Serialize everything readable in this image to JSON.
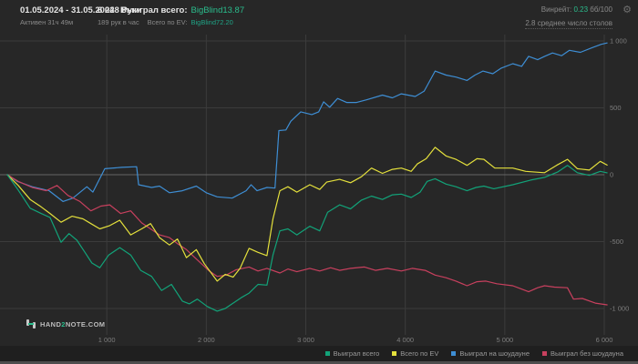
{
  "header": {
    "date_range": "01.05.2024 - 31.05.2024",
    "active_time": "Активен 31ч 49м",
    "hands_total": "6 028 Руки",
    "hands_per_hour": "189 рук в час",
    "won_label": "Выиграл всего:",
    "won_value": "BigBlind13.87",
    "ev_label": "Всего по EV:",
    "ev_value": "BigBlind72.20",
    "winrate_label": "Винрейт:",
    "winrate_value": "0.23",
    "winrate_unit": "бб/100",
    "avg_tables": "2.8 среднее число столов",
    "gear_icon": "⚙"
  },
  "footer": {
    "logo_pre": "HAND",
    "logo_num": "2",
    "logo_post": "NOTE.COM"
  },
  "legend": [
    {
      "label": "Выиграл всего",
      "color": "#12a379"
    },
    {
      "label": "Всего по EV",
      "color": "#e4e03c"
    },
    {
      "label": "Выиграл на шоудауне",
      "color": "#3e8ed4"
    },
    {
      "label": "Выиграл без шоудауна",
      "color": "#c8405e"
    }
  ],
  "colors": {
    "background": "#272727",
    "grid": "#3b3b3b",
    "zero_line": "#666666",
    "tick_text": "#7d7d7d",
    "accent_green": "#2abd8d"
  },
  "chart_data": {
    "type": "line",
    "title": "",
    "xlabel": "",
    "ylabel": "",
    "legend_position": "bottom-right",
    "grid": true,
    "x_axis": {
      "ticks": [
        1000,
        2000,
        3000,
        4000,
        5000,
        6000
      ],
      "tick_labels": [
        "1 000",
        "2 000",
        "3 000",
        "4 000",
        "5 000",
        "6 000"
      ],
      "min": 0,
      "max": 6028
    },
    "y_axis": {
      "ticks": [
        1000,
        500,
        0,
        -500,
        -1000
      ],
      "tick_labels": [
        "1 000",
        "500",
        "0",
        "-500",
        "-1 000"
      ],
      "min": -1100,
      "max": 1100
    },
    "series": [
      {
        "name": "Выиграл на шоудауне",
        "color": "#3e8ed4",
        "points": [
          [
            0,
            0
          ],
          [
            100,
            -50
          ],
          [
            250,
            -90
          ],
          [
            420,
            -120
          ],
          [
            560,
            -200
          ],
          [
            660,
            -175
          ],
          [
            800,
            -90
          ],
          [
            860,
            -130
          ],
          [
            980,
            45
          ],
          [
            1150,
            55
          ],
          [
            1300,
            60
          ],
          [
            1320,
            -75
          ],
          [
            1450,
            -95
          ],
          [
            1530,
            -85
          ],
          [
            1630,
            -135
          ],
          [
            1760,
            -120
          ],
          [
            1900,
            -85
          ],
          [
            2000,
            -135
          ],
          [
            2110,
            -165
          ],
          [
            2260,
            -175
          ],
          [
            2400,
            -120
          ],
          [
            2450,
            -75
          ],
          [
            2510,
            -120
          ],
          [
            2610,
            -95
          ],
          [
            2690,
            -100
          ],
          [
            2730,
            330
          ],
          [
            2800,
            335
          ],
          [
            2850,
            400
          ],
          [
            2950,
            470
          ],
          [
            3060,
            450
          ],
          [
            3130,
            470
          ],
          [
            3180,
            545
          ],
          [
            3240,
            505
          ],
          [
            3320,
            570
          ],
          [
            3410,
            540
          ],
          [
            3510,
            540
          ],
          [
            3610,
            560
          ],
          [
            3770,
            595
          ],
          [
            3870,
            575
          ],
          [
            3960,
            605
          ],
          [
            4100,
            585
          ],
          [
            4190,
            625
          ],
          [
            4300,
            775
          ],
          [
            4410,
            745
          ],
          [
            4510,
            730
          ],
          [
            4620,
            705
          ],
          [
            4700,
            745
          ],
          [
            4780,
            775
          ],
          [
            4880,
            755
          ],
          [
            4960,
            795
          ],
          [
            5080,
            830
          ],
          [
            5170,
            810
          ],
          [
            5240,
            885
          ],
          [
            5330,
            860
          ],
          [
            5400,
            885
          ],
          [
            5480,
            910
          ],
          [
            5570,
            890
          ],
          [
            5650,
            930
          ],
          [
            5760,
            915
          ],
          [
            5880,
            950
          ],
          [
            5970,
            975
          ],
          [
            6028,
            985
          ]
        ]
      },
      {
        "name": "Выиграл без шоудауна",
        "color": "#c8405e",
        "points": [
          [
            0,
            0
          ],
          [
            110,
            -50
          ],
          [
            250,
            -95
          ],
          [
            390,
            -120
          ],
          [
            500,
            -80
          ],
          [
            610,
            -155
          ],
          [
            730,
            -200
          ],
          [
            840,
            -270
          ],
          [
            940,
            -235
          ],
          [
            1030,
            -225
          ],
          [
            1140,
            -290
          ],
          [
            1240,
            -270
          ],
          [
            1350,
            -360
          ],
          [
            1450,
            -410
          ],
          [
            1530,
            -450
          ],
          [
            1630,
            -470
          ],
          [
            1710,
            -515
          ],
          [
            1800,
            -560
          ],
          [
            1900,
            -630
          ],
          [
            2030,
            -720
          ],
          [
            2110,
            -760
          ],
          [
            2200,
            -750
          ],
          [
            2300,
            -710
          ],
          [
            2430,
            -690
          ],
          [
            2520,
            -720
          ],
          [
            2610,
            -700
          ],
          [
            2740,
            -735
          ],
          [
            2820,
            -705
          ],
          [
            2910,
            -725
          ],
          [
            3040,
            -700
          ],
          [
            3140,
            -720
          ],
          [
            3250,
            -695
          ],
          [
            3340,
            -715
          ],
          [
            3450,
            -700
          ],
          [
            3590,
            -690
          ],
          [
            3700,
            -715
          ],
          [
            3820,
            -700
          ],
          [
            3960,
            -720
          ],
          [
            4070,
            -700
          ],
          [
            4200,
            -715
          ],
          [
            4300,
            -750
          ],
          [
            4410,
            -770
          ],
          [
            4510,
            -795
          ],
          [
            4620,
            -830
          ],
          [
            4720,
            -800
          ],
          [
            4810,
            -795
          ],
          [
            4920,
            -815
          ],
          [
            5080,
            -830
          ],
          [
            5170,
            -855
          ],
          [
            5240,
            -875
          ],
          [
            5330,
            -845
          ],
          [
            5400,
            -830
          ],
          [
            5500,
            -840
          ],
          [
            5630,
            -845
          ],
          [
            5690,
            -930
          ],
          [
            5780,
            -925
          ],
          [
            5910,
            -960
          ],
          [
            6028,
            -973
          ]
        ]
      },
      {
        "name": "Всего по EV",
        "color": "#e4e03c",
        "points": [
          [
            0,
            0
          ],
          [
            110,
            -80
          ],
          [
            230,
            -185
          ],
          [
            340,
            -240
          ],
          [
            430,
            -290
          ],
          [
            540,
            -355
          ],
          [
            650,
            -310
          ],
          [
            760,
            -330
          ],
          [
            840,
            -365
          ],
          [
            930,
            -405
          ],
          [
            1030,
            -380
          ],
          [
            1130,
            -340
          ],
          [
            1240,
            -450
          ],
          [
            1350,
            -405
          ],
          [
            1440,
            -365
          ],
          [
            1530,
            -470
          ],
          [
            1630,
            -525
          ],
          [
            1710,
            -480
          ],
          [
            1800,
            -620
          ],
          [
            1900,
            -560
          ],
          [
            1980,
            -665
          ],
          [
            2110,
            -795
          ],
          [
            2190,
            -745
          ],
          [
            2270,
            -765
          ],
          [
            2340,
            -700
          ],
          [
            2430,
            -550
          ],
          [
            2520,
            -580
          ],
          [
            2610,
            -605
          ],
          [
            2670,
            -330
          ],
          [
            2740,
            -120
          ],
          [
            2820,
            -90
          ],
          [
            2910,
            -130
          ],
          [
            3040,
            -75
          ],
          [
            3140,
            -110
          ],
          [
            3210,
            -55
          ],
          [
            3340,
            -35
          ],
          [
            3450,
            -60
          ],
          [
            3560,
            -15
          ],
          [
            3660,
            50
          ],
          [
            3770,
            10
          ],
          [
            3870,
            40
          ],
          [
            3960,
            50
          ],
          [
            4060,
            25
          ],
          [
            4120,
            80
          ],
          [
            4210,
            120
          ],
          [
            4300,
            205
          ],
          [
            4410,
            140
          ],
          [
            4510,
            115
          ],
          [
            4620,
            70
          ],
          [
            4720,
            120
          ],
          [
            4790,
            115
          ],
          [
            4900,
            50
          ],
          [
            5080,
            50
          ],
          [
            5210,
            25
          ],
          [
            5400,
            15
          ],
          [
            5520,
            70
          ],
          [
            5630,
            115
          ],
          [
            5730,
            45
          ],
          [
            5850,
            35
          ],
          [
            5960,
            100
          ],
          [
            6028,
            72
          ]
        ]
      },
      {
        "name": "Выиграл всего",
        "color": "#12a379",
        "points": [
          [
            0,
            0
          ],
          [
            110,
            -115
          ],
          [
            230,
            -250
          ],
          [
            340,
            -290
          ],
          [
            430,
            -320
          ],
          [
            540,
            -505
          ],
          [
            620,
            -440
          ],
          [
            700,
            -490
          ],
          [
            780,
            -580
          ],
          [
            850,
            -660
          ],
          [
            930,
            -695
          ],
          [
            1020,
            -600
          ],
          [
            1130,
            -545
          ],
          [
            1240,
            -600
          ],
          [
            1340,
            -715
          ],
          [
            1450,
            -760
          ],
          [
            1550,
            -865
          ],
          [
            1650,
            -820
          ],
          [
            1760,
            -945
          ],
          [
            1830,
            -965
          ],
          [
            1910,
            -930
          ],
          [
            2010,
            -985
          ],
          [
            2110,
            -1020
          ],
          [
            2190,
            -1000
          ],
          [
            2270,
            -960
          ],
          [
            2350,
            -920
          ],
          [
            2430,
            -885
          ],
          [
            2520,
            -820
          ],
          [
            2610,
            -825
          ],
          [
            2670,
            -600
          ],
          [
            2740,
            -420
          ],
          [
            2820,
            -405
          ],
          [
            2910,
            -450
          ],
          [
            3040,
            -385
          ],
          [
            3140,
            -420
          ],
          [
            3220,
            -280
          ],
          [
            3340,
            -225
          ],
          [
            3450,
            -255
          ],
          [
            3560,
            -190
          ],
          [
            3660,
            -160
          ],
          [
            3770,
            -185
          ],
          [
            3870,
            -150
          ],
          [
            3960,
            -145
          ],
          [
            4060,
            -170
          ],
          [
            4150,
            -130
          ],
          [
            4220,
            -50
          ],
          [
            4300,
            -30
          ],
          [
            4410,
            -70
          ],
          [
            4510,
            -90
          ],
          [
            4620,
            -120
          ],
          [
            4710,
            -95
          ],
          [
            4790,
            -85
          ],
          [
            4890,
            -105
          ],
          [
            5080,
            -75
          ],
          [
            5260,
            -40
          ],
          [
            5400,
            -20
          ],
          [
            5530,
            20
          ],
          [
            5630,
            70
          ],
          [
            5730,
            15
          ],
          [
            5850,
            -5
          ],
          [
            5960,
            25
          ],
          [
            6028,
            14
          ]
        ]
      }
    ]
  }
}
